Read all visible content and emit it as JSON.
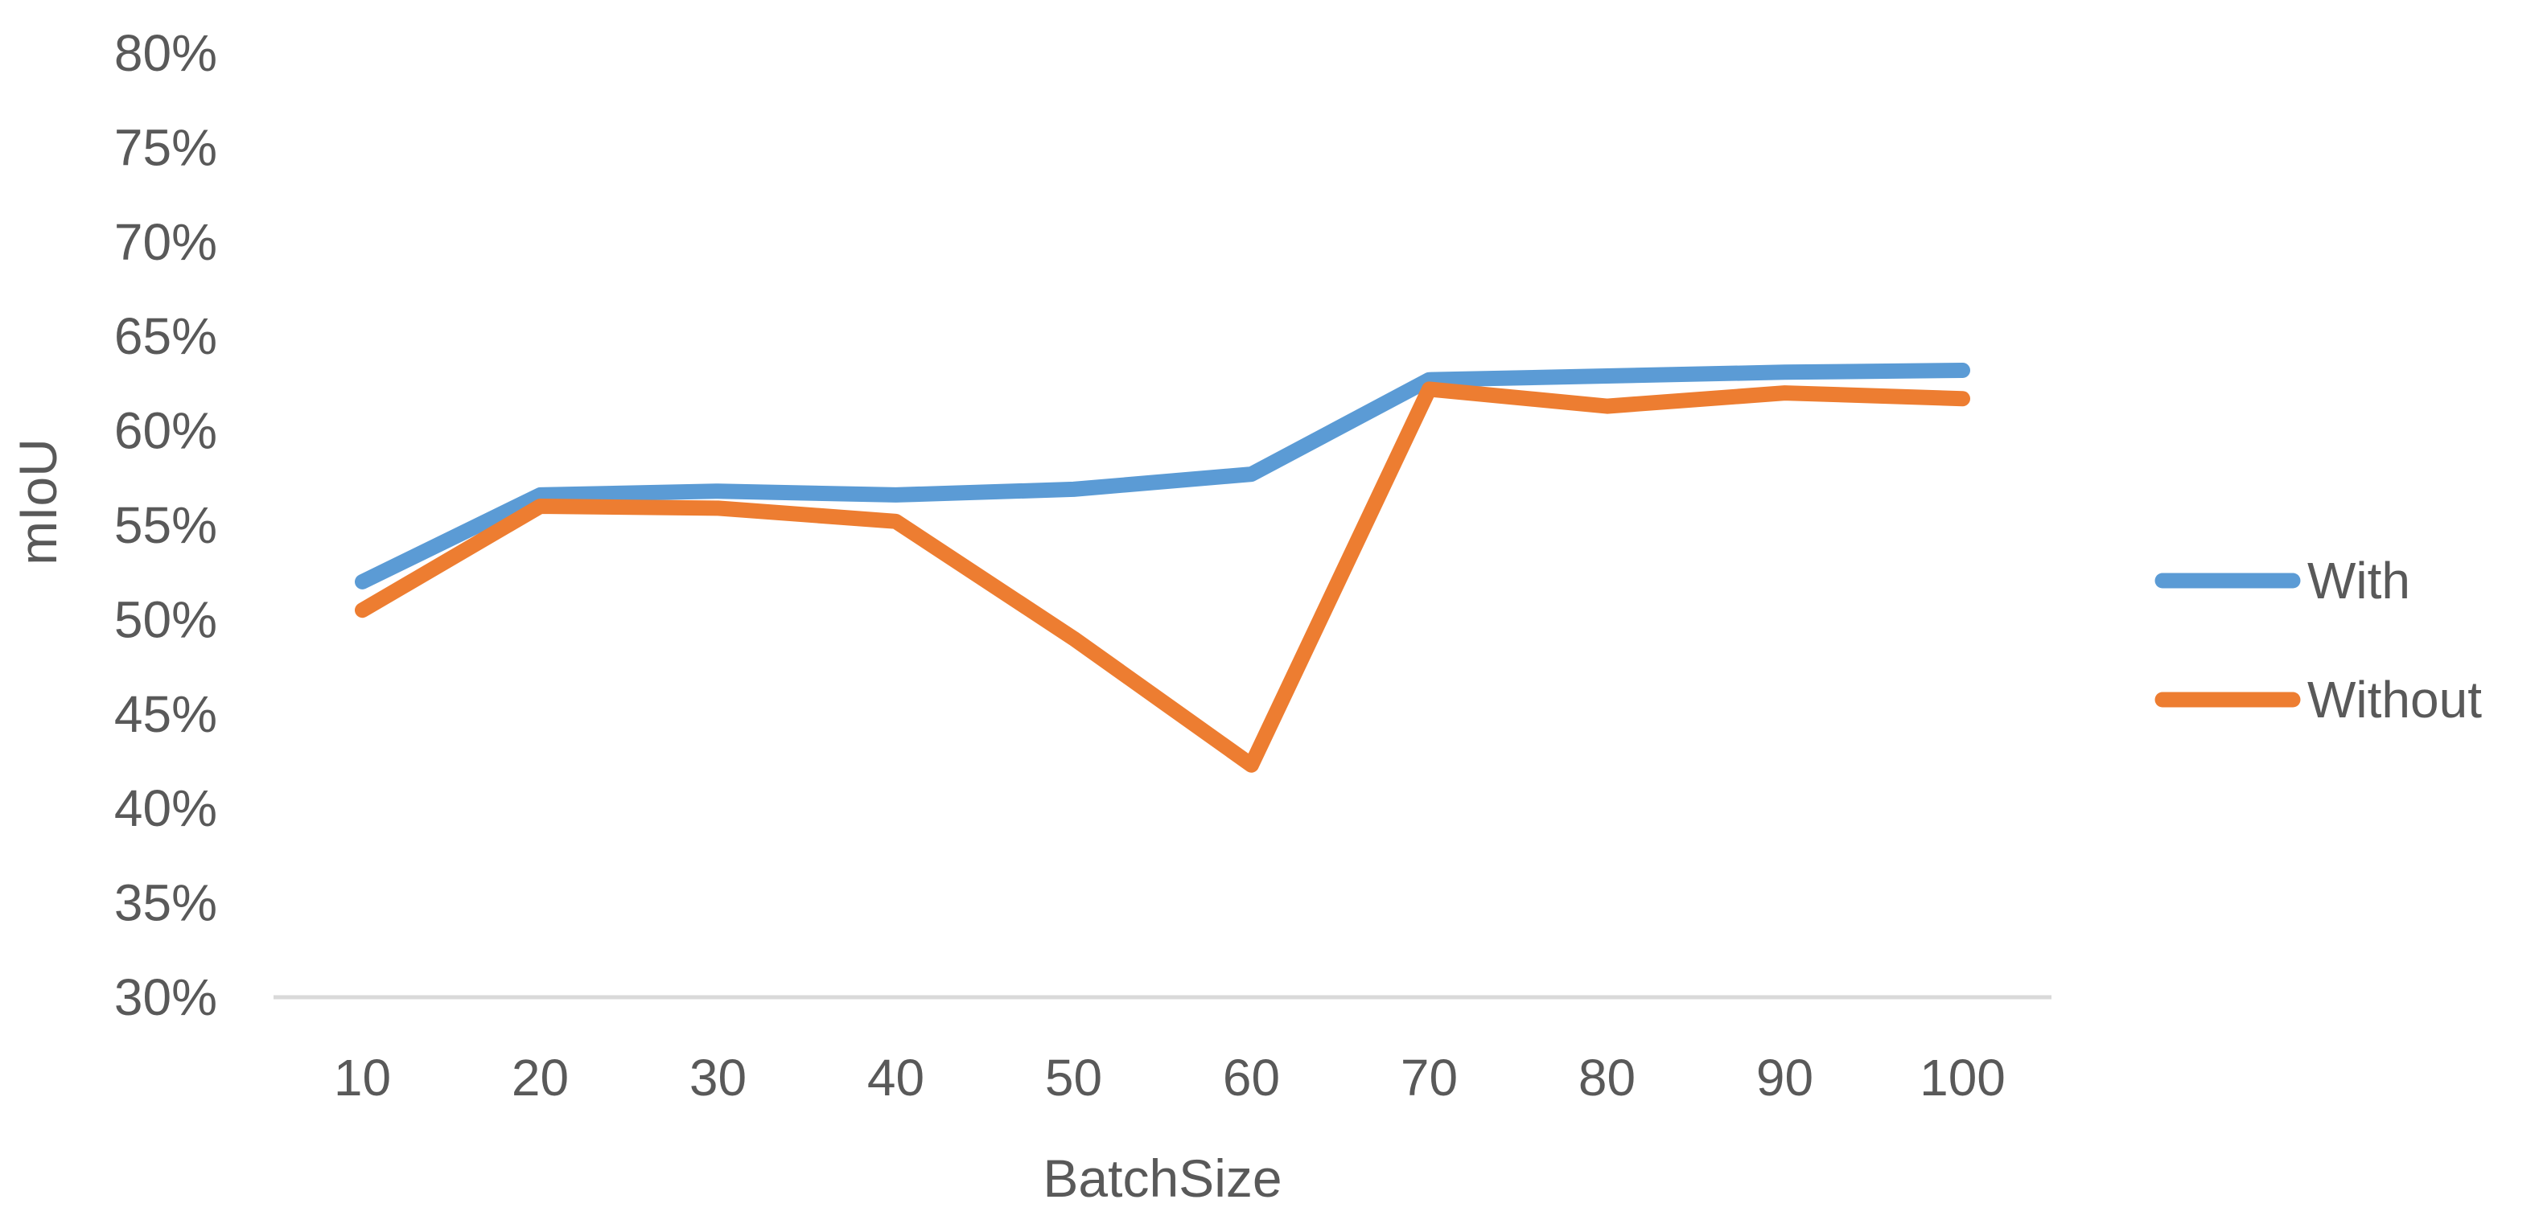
{
  "chart_data": {
    "type": "line",
    "title": "",
    "xlabel": "BatchSize",
    "ylabel": "mIoU",
    "categories": [
      "10",
      "20",
      "30",
      "40",
      "50",
      "60",
      "70",
      "80",
      "90",
      "100"
    ],
    "y_ticks": [
      "30%",
      "35%",
      "40%",
      "45%",
      "50%",
      "55%",
      "60%",
      "65%",
      "70%",
      "75%",
      "80%"
    ],
    "ylim": [
      0.3,
      0.8
    ],
    "grid": false,
    "legend_position": "right",
    "series": [
      {
        "name": "With",
        "color": "#5B9BD5",
        "values": [
          0.52,
          0.566,
          0.568,
          0.566,
          0.569,
          0.577,
          0.627,
          0.629,
          0.631,
          0.632
        ]
      },
      {
        "name": "Without",
        "color": "#ED7D31",
        "values": [
          0.505,
          0.56,
          0.559,
          0.552,
          0.49,
          0.423,
          0.622,
          0.613,
          0.62,
          0.617
        ]
      }
    ]
  }
}
